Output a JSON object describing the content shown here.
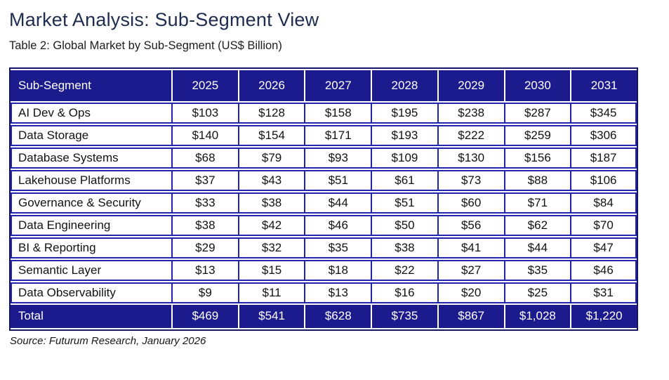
{
  "page": {
    "title": "Market Analysis: Sub-Segment View",
    "subtitle": "Table 2: Global Market by Sub-Segment (US$ Billion)",
    "source": "Source: Futurum Research, January 2026"
  },
  "colors": {
    "header_bg": "#1b1b8e",
    "grid_border": "#2222ae",
    "outer_frame": "#14146a",
    "title_text": "#1e2c4f",
    "header_text": "#ffffff"
  },
  "chart_data": {
    "type": "table",
    "title": "Table 2: Global Market by Sub-Segment (US$ Billion)",
    "columns": [
      "Sub-Segment",
      "2025",
      "2026",
      "2027",
      "2028",
      "2029",
      "2030",
      "2031"
    ],
    "rows": [
      {
        "label": "AI Dev & Ops",
        "values": [
          "$103",
          "$128",
          "$158",
          "$195",
          "$238",
          "$287",
          "$345"
        ]
      },
      {
        "label": "Data Storage",
        "values": [
          "$140",
          "$154",
          "$171",
          "$193",
          "$222",
          "$259",
          "$306"
        ]
      },
      {
        "label": "Database Systems",
        "values": [
          "$68",
          "$79",
          "$93",
          "$109",
          "$130",
          "$156",
          "$187"
        ]
      },
      {
        "label": "Lakehouse Platforms",
        "values": [
          "$37",
          "$43",
          "$51",
          "$61",
          "$73",
          "$88",
          "$106"
        ]
      },
      {
        "label": "Governance & Security",
        "values": [
          "$33",
          "$38",
          "$44",
          "$51",
          "$60",
          "$71",
          "$84"
        ]
      },
      {
        "label": "Data Engineering",
        "values": [
          "$38",
          "$42",
          "$46",
          "$50",
          "$56",
          "$62",
          "$70"
        ]
      },
      {
        "label": "BI & Reporting",
        "values": [
          "$29",
          "$32",
          "$35",
          "$38",
          "$41",
          "$44",
          "$47"
        ]
      },
      {
        "label": "Semantic Layer",
        "values": [
          "$13",
          "$15",
          "$18",
          "$22",
          "$27",
          "$35",
          "$46"
        ]
      },
      {
        "label": "Data Observability",
        "values": [
          "$9",
          "$11",
          "$13",
          "$16",
          "$20",
          "$25",
          "$31"
        ]
      }
    ],
    "total": {
      "label": "Total",
      "values": [
        "$469",
        "$541",
        "$628",
        "$735",
        "$867",
        "$1,028",
        "$1,220"
      ]
    }
  }
}
